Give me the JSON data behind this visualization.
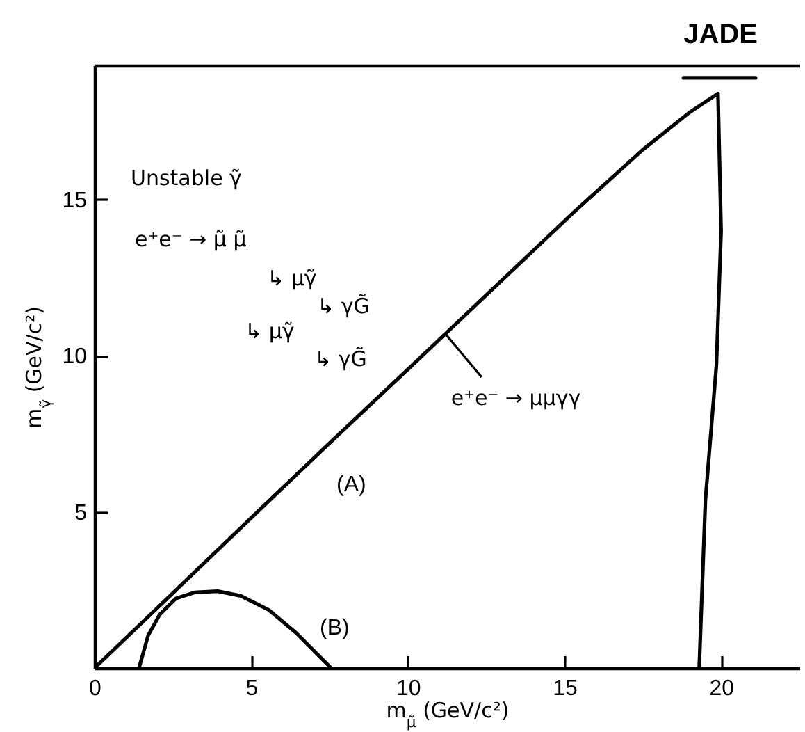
{
  "chart_data": {
    "type": "line",
    "title": "JADE",
    "xlabel": "m$_{μ̃}$ (GeV/c²)",
    "ylabel": "m$_{γ̃}$ (GeV/c²)",
    "xlim": [
      0,
      22.5
    ],
    "ylim": [
      0,
      19.3
    ],
    "xticks": [
      0,
      5,
      10,
      15,
      20
    ],
    "yticks": [
      5,
      10,
      15
    ],
    "series": [
      {
        "name": "(A)",
        "color": "#000000",
        "x": [
          0,
          2.5,
          5.2,
          7.5,
          10.3,
          11.3,
          13.3,
          15.3,
          17.5,
          19.0,
          19.9,
          20.0,
          19.85,
          19.5,
          19.3
        ],
        "values": [
          0,
          2.4,
          5.0,
          7.2,
          9.85,
          10.8,
          12.7,
          14.6,
          16.6,
          17.8,
          18.4,
          14.0,
          9.7,
          5.4,
          0
        ]
      },
      {
        "name": "(B)",
        "color": "#000000",
        "x": [
          1.42,
          1.71,
          2.08,
          2.6,
          3.19,
          3.93,
          4.67,
          5.56,
          6.44,
          7.33,
          7.55
        ],
        "values": [
          0,
          1.04,
          1.71,
          2.23,
          2.42,
          2.46,
          2.31,
          1.86,
          1.12,
          0.22,
          0
        ]
      },
      {
        "color": "#000000",
        "x": [
          18.8,
          21.1
        ],
        "values": [
          18.9,
          18.9
        ]
      }
    ],
    "annotations": [
      "Unstable γ̃",
      "e⁺e⁻ → μ̃ μ̃",
      "↳ μγ̃",
      "↳ γG̃",
      "↳ μγ̃",
      "↳ γG̃",
      {
        "text": "e⁺e⁻ → μμγγ",
        "x": 11.2,
        "y": 10.7
      }
    ]
  }
}
